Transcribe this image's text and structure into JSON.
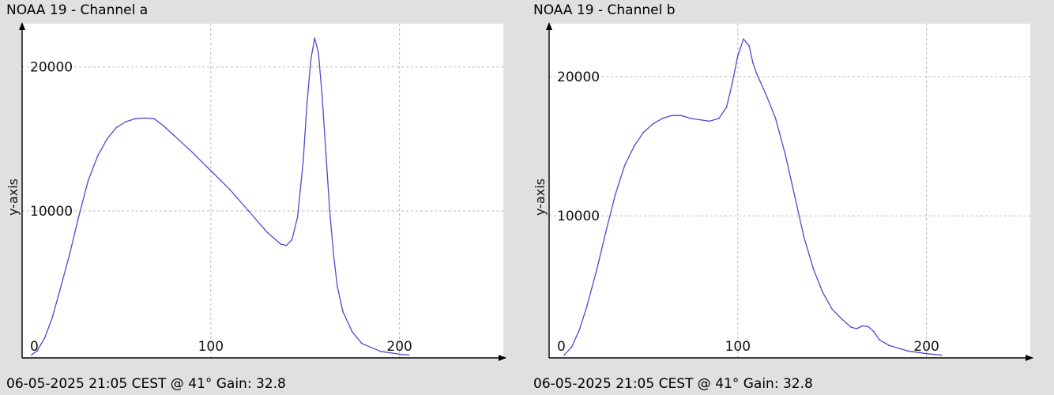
{
  "colors": {
    "background": "#e0e0e0",
    "plot_area": "#ffffff",
    "grid": "#b8b8b8",
    "axis": "#000000",
    "series": "#4b4bcf"
  },
  "panels": [
    {
      "title": "NOAA 19 - Channel a",
      "footer": "06-05-2025 21:05 CEST @ 41° Gain: 32.8"
    },
    {
      "title": "NOAA 19 - Channel b",
      "footer": "06-05-2025 21:05 CEST @ 41° Gain: 32.8"
    }
  ],
  "chart_data": [
    {
      "type": "line",
      "title": "NOAA 19 - Channel a",
      "xlabel": "",
      "ylabel": "y-axis",
      "xlim": [
        0,
        255
      ],
      "ylim": [
        -200,
        23000
      ],
      "x_ticks": [
        0,
        100,
        200
      ],
      "x_tick_labels": [
        "0",
        "100",
        "200"
      ],
      "y_ticks": [
        10000,
        20000
      ],
      "y_tick_labels": [
        "10000",
        "20000"
      ],
      "grid": true,
      "series": [
        {
          "points": [
            [
              5,
              0
            ],
            [
              8,
              300
            ],
            [
              12,
              1200
            ],
            [
              16,
              2600
            ],
            [
              20,
              4500
            ],
            [
              25,
              6900
            ],
            [
              30,
              9600
            ],
            [
              35,
              12100
            ],
            [
              40,
              13800
            ],
            [
              45,
              15000
            ],
            [
              50,
              15800
            ],
            [
              55,
              16200
            ],
            [
              60,
              16400
            ],
            [
              65,
              16450
            ],
            [
              70,
              16400
            ],
            [
              75,
              15900
            ],
            [
              80,
              15300
            ],
            [
              90,
              14100
            ],
            [
              100,
              12800
            ],
            [
              110,
              11500
            ],
            [
              120,
              10000
            ],
            [
              130,
              8500
            ],
            [
              137,
              7700
            ],
            [
              140,
              7600
            ],
            [
              143,
              8000
            ],
            [
              146,
              9600
            ],
            [
              149,
              13500
            ],
            [
              151,
              17500
            ],
            [
              153,
              20500
            ],
            [
              155,
              22000
            ],
            [
              157,
              21000
            ],
            [
              159,
              18000
            ],
            [
              161,
              14000
            ],
            [
              163,
              10000
            ],
            [
              165,
              7000
            ],
            [
              167,
              4800
            ],
            [
              170,
              3000
            ],
            [
              175,
              1600
            ],
            [
              180,
              800
            ],
            [
              190,
              250
            ],
            [
              200,
              50
            ],
            [
              205,
              0
            ]
          ]
        }
      ]
    },
    {
      "type": "line",
      "title": "NOAA 19 - Channel b",
      "xlabel": "",
      "ylabel": "y-axis",
      "xlim": [
        0,
        255
      ],
      "ylim": [
        -200,
        23800
      ],
      "x_ticks": [
        0,
        100,
        200
      ],
      "x_tick_labels": [
        "0",
        "100",
        "200"
      ],
      "y_ticks": [
        10000,
        20000
      ],
      "y_tick_labels": [
        "10000",
        "20000"
      ],
      "grid": true,
      "series": [
        {
          "points": [
            [
              8,
              0
            ],
            [
              12,
              600
            ],
            [
              16,
              1800
            ],
            [
              20,
              3500
            ],
            [
              25,
              6000
            ],
            [
              30,
              8800
            ],
            [
              35,
              11500
            ],
            [
              40,
              13600
            ],
            [
              45,
              15000
            ],
            [
              50,
              16000
            ],
            [
              55,
              16600
            ],
            [
              60,
              17000
            ],
            [
              65,
              17200
            ],
            [
              70,
              17200
            ],
            [
              75,
              17000
            ],
            [
              80,
              16900
            ],
            [
              85,
              16800
            ],
            [
              90,
              17000
            ],
            [
              94,
              17800
            ],
            [
              97,
              19500
            ],
            [
              100,
              21500
            ],
            [
              103,
              22700
            ],
            [
              106,
              22200
            ],
            [
              108,
              21000
            ],
            [
              110,
              20200
            ],
            [
              115,
              18700
            ],
            [
              120,
              17000
            ],
            [
              125,
              14500
            ],
            [
              130,
              11500
            ],
            [
              135,
              8500
            ],
            [
              140,
              6200
            ],
            [
              145,
              4500
            ],
            [
              150,
              3300
            ],
            [
              155,
              2600
            ],
            [
              160,
              2000
            ],
            [
              163,
              1900
            ],
            [
              166,
              2100
            ],
            [
              169,
              2050
            ],
            [
              172,
              1700
            ],
            [
              175,
              1100
            ],
            [
              180,
              700
            ],
            [
              190,
              300
            ],
            [
              200,
              100
            ],
            [
              208,
              0
            ]
          ]
        }
      ]
    }
  ]
}
